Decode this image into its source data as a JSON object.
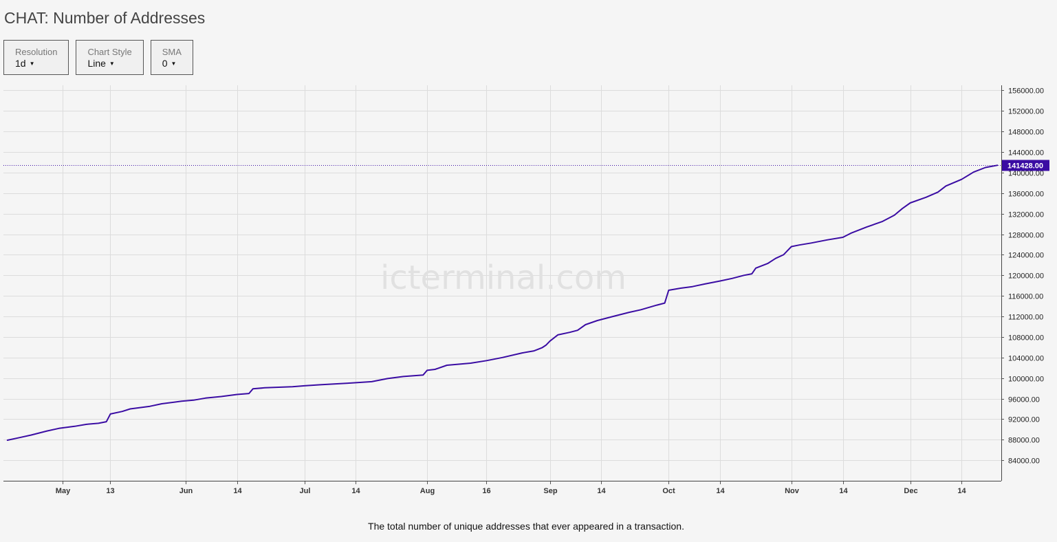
{
  "header": {
    "title": "CHAT: Number of Addresses"
  },
  "controls": [
    {
      "label": "Resolution",
      "value": "1d"
    },
    {
      "label": "Chart Style",
      "value": "Line"
    },
    {
      "label": "SMA",
      "value": "0"
    }
  ],
  "watermark": "icterminal.com",
  "footnote": "The total number of unique addresses that ever appeared in a transaction.",
  "colors": {
    "series": "#3a0ca3",
    "badge": "#3a0ca3",
    "grid": "#dcdcdc",
    "watermark": "#e1e1e1"
  },
  "chart_data": {
    "type": "line",
    "title": "CHAT: Number of Addresses",
    "xlabel": "",
    "ylabel": "",
    "xlim": [
      "2018-04-16",
      "2018-12-24"
    ],
    "ylim": [
      80000,
      157000
    ],
    "grid": true,
    "legend": "none",
    "last_value_label": "141428.00",
    "x_ticks": [
      {
        "date": "2018-05-01",
        "label": "May"
      },
      {
        "date": "2018-05-13",
        "label": "13"
      },
      {
        "date": "2018-06-01",
        "label": "Jun"
      },
      {
        "date": "2018-06-14",
        "label": "14"
      },
      {
        "date": "2018-07-01",
        "label": "Jul"
      },
      {
        "date": "2018-07-14",
        "label": "14"
      },
      {
        "date": "2018-08-01",
        "label": "Aug"
      },
      {
        "date": "2018-08-16",
        "label": "16"
      },
      {
        "date": "2018-09-01",
        "label": "Sep"
      },
      {
        "date": "2018-09-14",
        "label": "14"
      },
      {
        "date": "2018-10-01",
        "label": "Oct"
      },
      {
        "date": "2018-10-14",
        "label": "14"
      },
      {
        "date": "2018-11-01",
        "label": "Nov"
      },
      {
        "date": "2018-11-14",
        "label": "14"
      },
      {
        "date": "2018-12-01",
        "label": "Dec"
      },
      {
        "date": "2018-12-14",
        "label": "14"
      }
    ],
    "y_ticks": [
      84000,
      88000,
      92000,
      96000,
      100000,
      104000,
      108000,
      112000,
      116000,
      120000,
      124000,
      128000,
      132000,
      136000,
      140000,
      144000,
      148000,
      152000,
      156000
    ],
    "y_tick_labels": [
      "84000.00",
      "88000.00",
      "92000.00",
      "96000.00",
      "100000.00",
      "104000.00",
      "108000.00",
      "112000.00",
      "116000.00",
      "120000.00",
      "124000.00",
      "128000.00",
      "132000.00",
      "136000.00",
      "140000.00",
      "144000.00",
      "148000.00",
      "152000.00",
      "156000.00"
    ],
    "series": [
      {
        "values": [
          [
            "2018-04-17",
            87900
          ],
          [
            "2018-04-20",
            88400
          ],
          [
            "2018-04-23",
            88900
          ],
          [
            "2018-04-27",
            89700
          ],
          [
            "2018-04-30",
            90200
          ],
          [
            "2018-05-04",
            90600
          ],
          [
            "2018-05-07",
            91000
          ],
          [
            "2018-05-10",
            91200
          ],
          [
            "2018-05-12",
            91500
          ],
          [
            "2018-05-13",
            93000
          ],
          [
            "2018-05-16",
            93500
          ],
          [
            "2018-05-18",
            94000
          ],
          [
            "2018-05-23",
            94500
          ],
          [
            "2018-05-26",
            95000
          ],
          [
            "2018-05-31",
            95500
          ],
          [
            "2018-06-03",
            95700
          ],
          [
            "2018-06-06",
            96100
          ],
          [
            "2018-06-10",
            96400
          ],
          [
            "2018-06-14",
            96800
          ],
          [
            "2018-06-17",
            97000
          ],
          [
            "2018-06-18",
            97900
          ],
          [
            "2018-06-21",
            98100
          ],
          [
            "2018-06-28",
            98300
          ],
          [
            "2018-07-01",
            98500
          ],
          [
            "2018-07-05",
            98700
          ],
          [
            "2018-07-12",
            99000
          ],
          [
            "2018-07-18",
            99300
          ],
          [
            "2018-07-22",
            99900
          ],
          [
            "2018-07-26",
            100300
          ],
          [
            "2018-07-31",
            100600
          ],
          [
            "2018-08-01",
            101500
          ],
          [
            "2018-08-03",
            101700
          ],
          [
            "2018-08-06",
            102500
          ],
          [
            "2018-08-12",
            102900
          ],
          [
            "2018-08-16",
            103400
          ],
          [
            "2018-08-20",
            104000
          ],
          [
            "2018-08-25",
            104900
          ],
          [
            "2018-08-28",
            105300
          ],
          [
            "2018-08-30",
            105900
          ],
          [
            "2018-08-31",
            106400
          ],
          [
            "2018-09-01",
            107200
          ],
          [
            "2018-09-03",
            108400
          ],
          [
            "2018-09-06",
            108900
          ],
          [
            "2018-09-08",
            109300
          ],
          [
            "2018-09-10",
            110400
          ],
          [
            "2018-09-13",
            111200
          ],
          [
            "2018-09-15",
            111600
          ],
          [
            "2018-09-17",
            112000
          ],
          [
            "2018-09-21",
            112800
          ],
          [
            "2018-09-24",
            113300
          ],
          [
            "2018-09-28",
            114200
          ],
          [
            "2018-09-30",
            114600
          ],
          [
            "2018-10-01",
            117100
          ],
          [
            "2018-10-04",
            117500
          ],
          [
            "2018-10-07",
            117800
          ],
          [
            "2018-10-10",
            118300
          ],
          [
            "2018-10-14",
            118900
          ],
          [
            "2018-10-17",
            119400
          ],
          [
            "2018-10-20",
            120000
          ],
          [
            "2018-10-22",
            120300
          ],
          [
            "2018-10-23",
            121400
          ],
          [
            "2018-10-26",
            122300
          ],
          [
            "2018-10-28",
            123300
          ],
          [
            "2018-10-30",
            124000
          ],
          [
            "2018-11-01",
            125600
          ],
          [
            "2018-11-03",
            125900
          ],
          [
            "2018-11-06",
            126300
          ],
          [
            "2018-11-10",
            126900
          ],
          [
            "2018-11-14",
            127400
          ],
          [
            "2018-11-16",
            128200
          ],
          [
            "2018-11-20",
            129400
          ],
          [
            "2018-11-24",
            130500
          ],
          [
            "2018-11-27",
            131700
          ],
          [
            "2018-11-29",
            133000
          ],
          [
            "2018-12-01",
            134100
          ],
          [
            "2018-12-05",
            135200
          ],
          [
            "2018-12-08",
            136200
          ],
          [
            "2018-12-10",
            137400
          ],
          [
            "2018-12-14",
            138700
          ],
          [
            "2018-12-17",
            140100
          ],
          [
            "2018-12-20",
            141000
          ],
          [
            "2018-12-23",
            141428
          ]
        ]
      }
    ]
  }
}
